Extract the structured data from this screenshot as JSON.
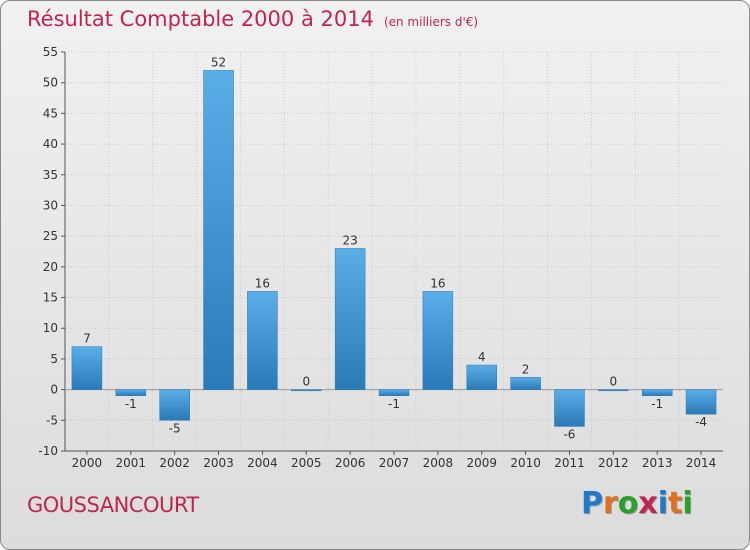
{
  "chart_data": {
    "type": "bar",
    "title": "Résultat Comptable 2000 à 2014",
    "subtitle": "(en milliers d'€)",
    "categories": [
      "2000",
      "2001",
      "2002",
      "2003",
      "2004",
      "2005",
      "2006",
      "2007",
      "2008",
      "2009",
      "2010",
      "2011",
      "2012",
      "2013",
      "2014"
    ],
    "values": [
      7,
      -1,
      -5,
      52,
      16,
      0,
      23,
      -1,
      16,
      4,
      2,
      -6,
      0,
      -1,
      -4
    ],
    "data_labels": [
      "7",
      "-1",
      "-5",
      "52",
      "16",
      "0",
      "23",
      "-1",
      "16",
      "4",
      "2",
      "-6",
      "0",
      "-1",
      "-4"
    ],
    "ylim": [
      -10,
      55
    ],
    "yticks": [
      -10,
      -5,
      0,
      5,
      10,
      15,
      20,
      25,
      30,
      35,
      40,
      45,
      50,
      55
    ],
    "ytick_labels": [
      "-10",
      "-5",
      "0",
      "5",
      "10",
      "15",
      "20",
      "25",
      "30",
      "35",
      "40",
      "45",
      "50",
      "55"
    ],
    "grid": true,
    "xlabel": "",
    "ylabel": ""
  },
  "footer": {
    "commune": "GOUSSANCOURT",
    "logo_text": "Proxiti"
  },
  "colors": {
    "title": "#c0254f",
    "bar_light": "#5aaee8",
    "bar_dark": "#2a7ab8",
    "logo": [
      "#1f78c8",
      "#e07020",
      "#2aa02a",
      "#c0254f",
      "#1f78c8",
      "#e07020",
      "#2aa02a"
    ]
  }
}
